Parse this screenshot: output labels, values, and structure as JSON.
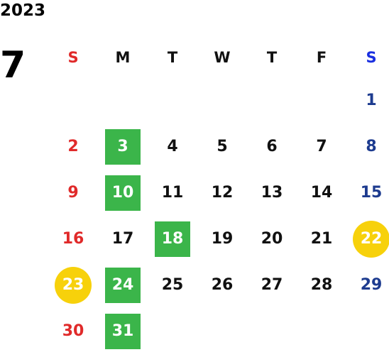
{
  "calendar": {
    "year": "2023",
    "month": "7",
    "weekdays": [
      "S",
      "M",
      "T",
      "W",
      "T",
      "F",
      "S"
    ],
    "colors": {
      "sunday": "#e02a2a",
      "saturday": "#1d3b8f",
      "saturday_header": "#1a2fe0",
      "green_highlight": "#3bb54a",
      "yellow_highlight": "#f7d10b"
    },
    "weeks": [
      [
        {
          "d": ""
        },
        {
          "d": ""
        },
        {
          "d": ""
        },
        {
          "d": ""
        },
        {
          "d": ""
        },
        {
          "d": ""
        },
        {
          "d": "1"
        }
      ],
      [
        {
          "d": "2"
        },
        {
          "d": "3",
          "hl": "green"
        },
        {
          "d": "4"
        },
        {
          "d": "5"
        },
        {
          "d": "6"
        },
        {
          "d": "7"
        },
        {
          "d": "8"
        }
      ],
      [
        {
          "d": "9"
        },
        {
          "d": "10",
          "hl": "green"
        },
        {
          "d": "11"
        },
        {
          "d": "12"
        },
        {
          "d": "13"
        },
        {
          "d": "14"
        },
        {
          "d": "15"
        }
      ],
      [
        {
          "d": "16"
        },
        {
          "d": "17"
        },
        {
          "d": "18",
          "hl": "green"
        },
        {
          "d": "19"
        },
        {
          "d": "20"
        },
        {
          "d": "21"
        },
        {
          "d": "22",
          "hl": "yellow"
        }
      ],
      [
        {
          "d": "23",
          "hl": "yellow"
        },
        {
          "d": "24",
          "hl": "green"
        },
        {
          "d": "25"
        },
        {
          "d": "26"
        },
        {
          "d": "27"
        },
        {
          "d": "28"
        },
        {
          "d": "29"
        }
      ],
      [
        {
          "d": "30"
        },
        {
          "d": "31",
          "hl": "green"
        },
        {
          "d": ""
        },
        {
          "d": ""
        },
        {
          "d": ""
        },
        {
          "d": ""
        },
        {
          "d": ""
        }
      ]
    ]
  }
}
